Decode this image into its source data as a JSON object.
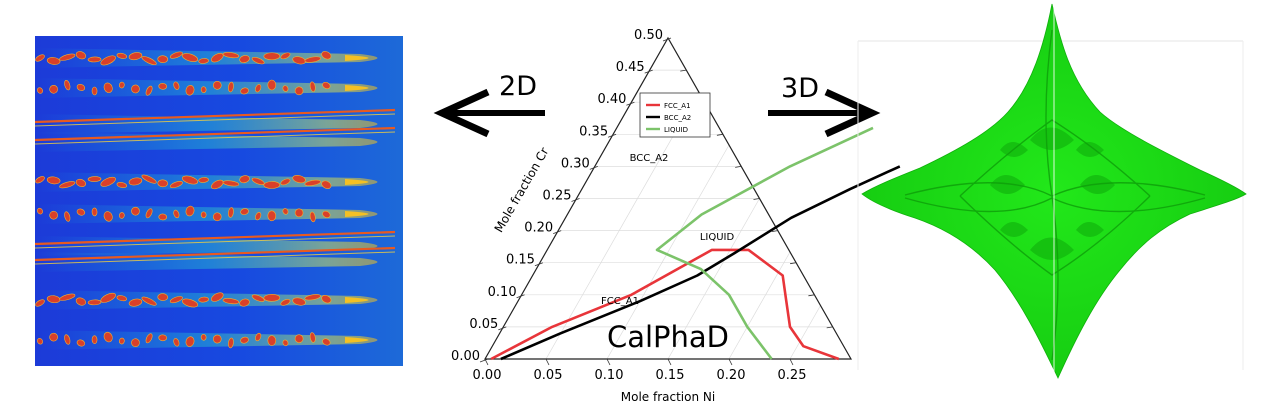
{
  "labels": {
    "left_arrow": "2D",
    "right_arrow": "3D",
    "center_title": "CalPhaD"
  },
  "chart_data": {
    "type": "ternary",
    "xlabel": "Mole fraction Ni",
    "ylabel": "Mole fraction Cr",
    "x_ticks": [
      "0.00",
      "0.05",
      "0.10",
      "0.15",
      "0.20",
      "0.25"
    ],
    "y_ticks": [
      "0.00",
      "0.05",
      "0.10",
      "0.15",
      "0.20",
      "0.25",
      "0.30",
      "0.35",
      "0.40",
      "0.45",
      "0.50"
    ],
    "region_labels": [
      "BCC_A2",
      "LIQUID",
      "FCC_A1"
    ],
    "legend_position": "top-center",
    "series": [
      {
        "name": "FCC_A1",
        "color": "#e8353a",
        "points": [
          [
            0.005,
            0.0
          ],
          [
            0.04,
            0.05
          ],
          [
            0.09,
            0.1
          ],
          [
            0.135,
            0.17
          ],
          [
            0.165,
            0.17
          ],
          [
            0.205,
            0.13
          ],
          [
            0.22,
            0.09
          ],
          [
            0.235,
            0.05
          ],
          [
            0.255,
            0.02
          ],
          [
            0.29,
            0.0
          ]
        ]
      },
      {
        "name": "BCC_A2",
        "color": "#000000",
        "points": [
          [
            0.013,
            0.0
          ],
          [
            0.05,
            0.04
          ],
          [
            0.1,
            0.09
          ],
          [
            0.135,
            0.13
          ],
          [
            0.155,
            0.165
          ],
          [
            0.185,
            0.22
          ],
          [
            0.22,
            0.265
          ],
          [
            0.25,
            0.3
          ]
        ]
      },
      {
        "name": "LIQUID",
        "color": "#7cc36a",
        "points": [
          [
            0.21,
            0.36
          ],
          [
            0.16,
            0.3
          ],
          [
            0.11,
            0.225
          ],
          [
            0.09,
            0.17
          ],
          [
            0.135,
            0.14
          ],
          [
            0.17,
            0.1
          ],
          [
            0.2,
            0.05
          ],
          [
            0.235,
            0.0
          ]
        ]
      }
    ],
    "xlim": [
      0,
      0.3
    ],
    "ylim": [
      0,
      0.5
    ]
  }
}
